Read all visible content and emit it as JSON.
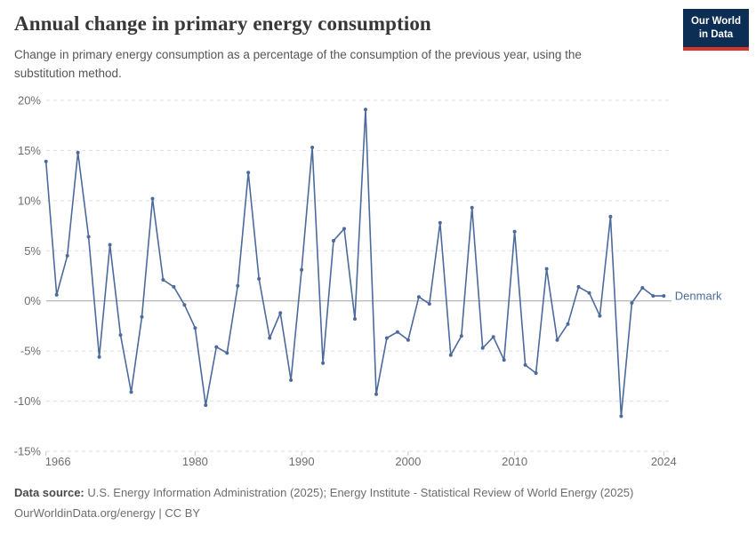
{
  "header": {
    "title": "Annual change in primary energy consumption",
    "subtitle": "Change in primary energy consumption as a percentage of the consumption of the previous year, using the substitution method.",
    "logo": {
      "line1": "Our World",
      "line2": "in Data",
      "bg_color": "#0C2E54",
      "accent_color": "#D7352C"
    }
  },
  "chart_data": {
    "type": "line",
    "title": "Annual change in primary energy consumption",
    "unit": "%",
    "entity_label": "Denmark",
    "x": [
      1966,
      1967,
      1968,
      1969,
      1970,
      1971,
      1972,
      1973,
      1974,
      1975,
      1976,
      1977,
      1978,
      1979,
      1980,
      1981,
      1982,
      1983,
      1984,
      1985,
      1986,
      1987,
      1988,
      1989,
      1990,
      1991,
      1992,
      1993,
      1994,
      1995,
      1996,
      1997,
      1998,
      1999,
      2000,
      2001,
      2002,
      2003,
      2004,
      2005,
      2006,
      2007,
      2008,
      2009,
      2010,
      2011,
      2012,
      2013,
      2014,
      2015,
      2016,
      2017,
      2018,
      2019,
      2020,
      2021,
      2022,
      2023,
      2024
    ],
    "series": [
      {
        "name": "Denmark",
        "color": "#4C6A9C",
        "values": [
          13.9,
          0.6,
          4.5,
          14.8,
          6.4,
          -5.6,
          5.6,
          -3.4,
          -9.1,
          -1.6,
          10.2,
          2.1,
          1.4,
          -0.4,
          -2.7,
          -10.4,
          -4.6,
          -5.2,
          1.5,
          12.8,
          2.2,
          -3.7,
          -1.2,
          -7.9,
          3.1,
          15.3,
          -6.2,
          6.0,
          7.2,
          -1.8,
          19.1,
          -9.3,
          -3.7,
          -3.1,
          -3.9,
          0.4,
          -0.3,
          7.8,
          -5.4,
          -3.5,
          9.3,
          -4.7,
          -3.6,
          -5.9,
          6.9,
          -6.4,
          -7.2,
          3.2,
          -3.9,
          -2.3,
          1.4,
          0.8,
          -1.5,
          8.4,
          -11.5,
          -0.2,
          1.3,
          0.5,
          0.5
        ]
      }
    ],
    "ylim": [
      -15,
      20
    ],
    "yticks": [
      20,
      15,
      10,
      5,
      0,
      -5,
      -10,
      -15
    ],
    "ytick_suffix": "%",
    "xticks": [
      1966,
      1980,
      1990,
      2000,
      2010,
      2024
    ],
    "grid": "horizontal-dashed",
    "zero_line": true,
    "legend_position": "end-of-line-label"
  },
  "footer": {
    "source_label": "Data source:",
    "source_text": "U.S. Energy Information Administration (2025); Energy Institute - Statistical Review of World Energy (2025)",
    "url": "OurWorldinData.org/energy",
    "separator": "|",
    "license": "CC BY"
  }
}
